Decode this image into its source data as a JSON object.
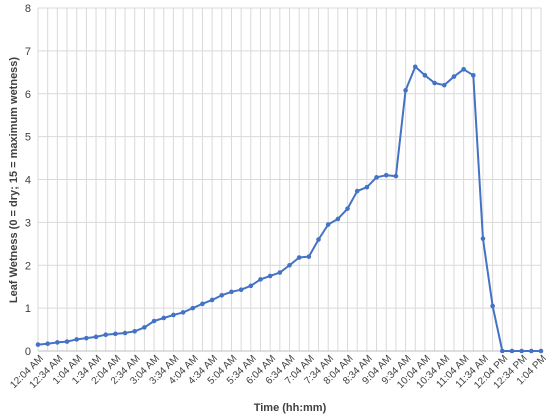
{
  "chart_data": {
    "type": "line",
    "xlabel": "Time (hh:mm)",
    "ylabel": "Leaf Wetness (0 = dry; 15 = maximum wetness)",
    "ylim": [
      0,
      8
    ],
    "yticks": [
      0,
      1,
      2,
      3,
      4,
      5,
      6,
      7,
      8
    ],
    "grid": true,
    "legend": "none",
    "colors": {
      "series": "#4472c4",
      "grid": "#d9d9d9",
      "text": "#404040"
    },
    "x_tick_labels": [
      "12:04 AM",
      "12:34 AM",
      "1:04 AM",
      "1:34 AM",
      "2:04 AM",
      "2:34 AM",
      "3:04 AM",
      "3:34 AM",
      "4:04 AM",
      "4:34 AM",
      "5:04 AM",
      "5:34 AM",
      "6:04 AM",
      "6:34 AM",
      "7:04 AM",
      "7:34 AM",
      "8:04 AM",
      "8:34 AM",
      "9:04 AM",
      "9:34 AM",
      "10:04 AM",
      "10:34 AM",
      "11:04 AM",
      "11:34 AM",
      "12:04 PM",
      "12:34 PM",
      "1:04 PM"
    ],
    "x_interval_minutes": 15,
    "series": [
      {
        "values": [
          0.15,
          0.17,
          0.2,
          0.22,
          0.27,
          0.3,
          0.33,
          0.38,
          0.4,
          0.42,
          0.46,
          0.55,
          0.7,
          0.77,
          0.84,
          0.9,
          1.0,
          1.1,
          1.19,
          1.3,
          1.38,
          1.43,
          1.52,
          1.67,
          1.75,
          1.83,
          2.0,
          2.18,
          2.2,
          2.6,
          2.95,
          3.08,
          3.32,
          3.73,
          3.82,
          4.05,
          4.1,
          4.08,
          6.08,
          6.63,
          6.43,
          6.25,
          6.2,
          6.4,
          6.57,
          6.43,
          2.62,
          1.05,
          0.0,
          0.0,
          0.0,
          0.0,
          0.0
        ]
      }
    ]
  }
}
